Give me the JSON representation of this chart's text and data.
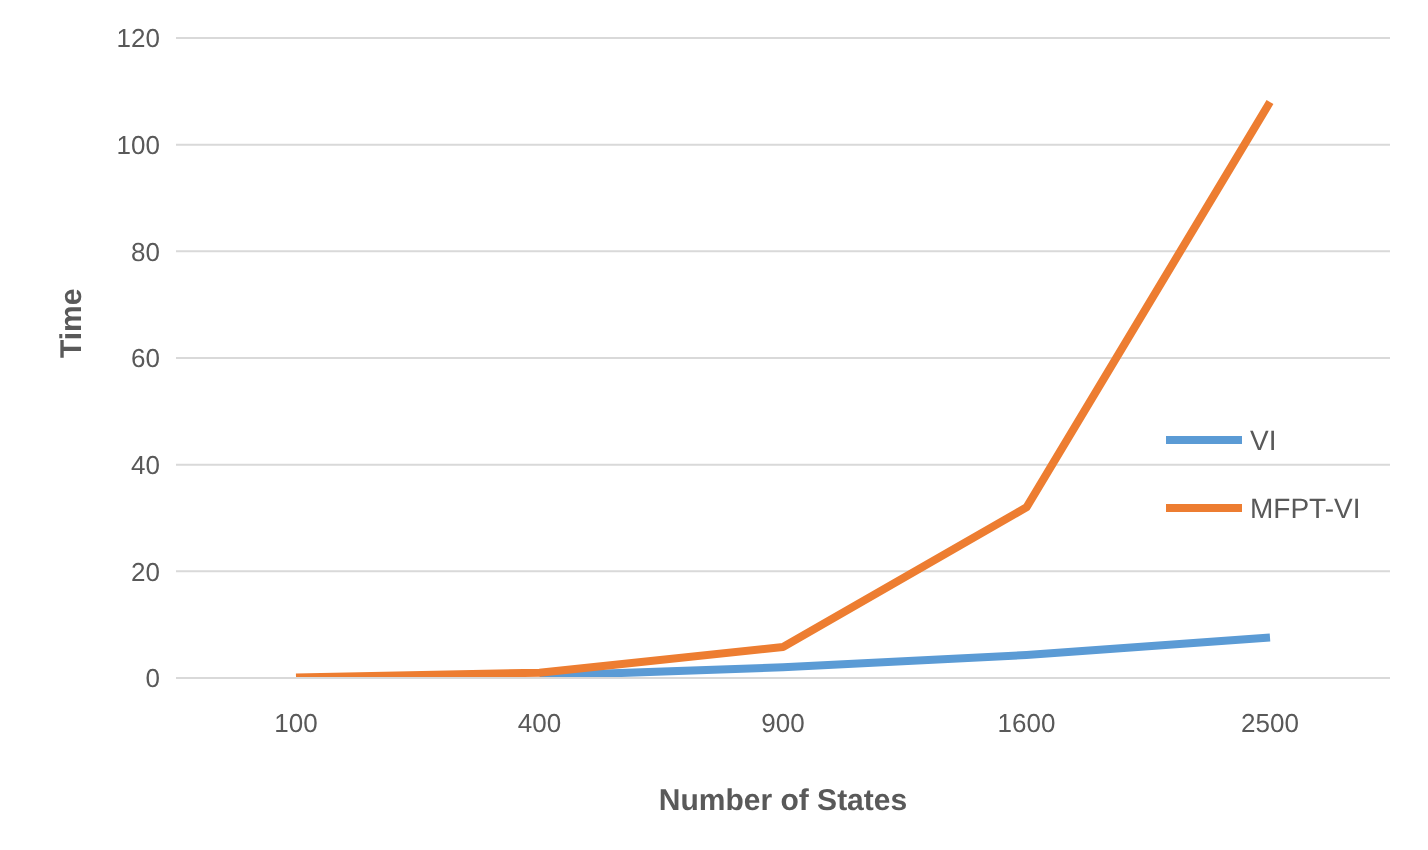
{
  "chart_data": {
    "type": "line",
    "xlabel": "Number of States",
    "ylabel": "Time",
    "categories": [
      "100",
      "400",
      "900",
      "1600",
      "2500"
    ],
    "series": [
      {
        "name": "VI",
        "color": "#5b9bd5",
        "values": [
          null,
          0.4,
          2,
          4.3,
          7.6
        ]
      },
      {
        "name": "MFPT-VI",
        "color": "#ed7d31",
        "values": [
          0.1,
          1,
          5.8,
          32,
          108
        ]
      }
    ],
    "ylim": [
      0,
      120
    ],
    "yticks": [
      0,
      20,
      40,
      60,
      80,
      100,
      120
    ],
    "grid": "y",
    "legend": "right",
    "marker": "none",
    "line_style": "solid"
  }
}
